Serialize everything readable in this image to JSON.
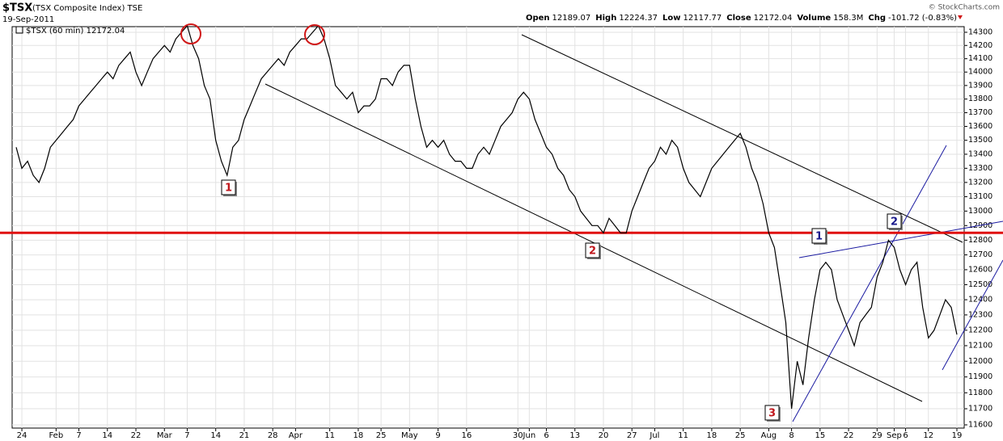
{
  "chart_data": {
    "type": "line",
    "title": "$TSX",
    "subtitle": "(TSX Composite Index) TSE",
    "date": "19-Sep-2011",
    "quote": [
      {
        "label": "Open",
        "value": "12189.07"
      },
      {
        "label": "High",
        "value": "12224.37"
      },
      {
        "label": "Low",
        "value": "12117.77"
      },
      {
        "label": "Close",
        "value": "12172.04"
      },
      {
        "label": "Volume",
        "value": "158.3M"
      },
      {
        "label": "Chg",
        "value": "-101.72 (-0.83%)"
      }
    ],
    "copyright": "© StockCharts.com",
    "legend": "$TSX (60 min) 12172.04",
    "color": "#000000",
    "log_scale": true,
    "grid": true,
    "hline": {
      "value": 12850,
      "color": "#e01010"
    },
    "annotations": [
      {
        "text": "1",
        "color": "#c0161b"
      },
      {
        "text": "2",
        "color": "#c0161b"
      },
      {
        "text": "3",
        "color": "#c0161b"
      },
      {
        "text": "1",
        "color": "#1a1a8c"
      },
      {
        "text": "2",
        "color": "#1a1a8c"
      }
    ],
    "categories": [
      null,
      "24",
      null,
      null,
      null,
      null,
      null,
      "Feb",
      null,
      null,
      null,
      "7",
      null,
      null,
      null,
      null,
      "14",
      null,
      null,
      null,
      null,
      "22",
      null,
      null,
      null,
      null,
      "Mar",
      null,
      null,
      null,
      "7",
      null,
      null,
      null,
      null,
      "14",
      null,
      null,
      null,
      null,
      "21",
      null,
      null,
      null,
      null,
      "28",
      null,
      null,
      null,
      "Apr",
      null,
      null,
      null,
      null,
      null,
      "11",
      null,
      null,
      null,
      null,
      "18",
      null,
      null,
      null,
      "25",
      null,
      null,
      null,
      null,
      "May",
      null,
      null,
      null,
      null,
      "9",
      null,
      null,
      null,
      null,
      "16",
      null,
      null,
      null,
      null,
      null,
      null,
      null,
      null,
      "30",
      null,
      "Jun",
      null,
      null,
      "6",
      null,
      null,
      null,
      null,
      "13",
      null,
      null,
      null,
      null,
      "20",
      null,
      null,
      null,
      null,
      "27",
      null,
      null,
      null,
      "Jul",
      null,
      null,
      null,
      null,
      "11",
      null,
      null,
      null,
      null,
      "18",
      null,
      null,
      null,
      null,
      "25",
      null,
      null,
      null,
      null,
      "Aug",
      null,
      null,
      null,
      "8",
      null,
      null,
      null,
      null,
      "15",
      null,
      null,
      null,
      null,
      "22",
      null,
      null,
      null,
      null,
      "29",
      null,
      null,
      "Sep",
      null,
      "6",
      null,
      null,
      null,
      "12",
      null,
      null,
      null,
      null,
      "19"
    ],
    "values": [
      13450,
      13300,
      13350,
      13250,
      13200,
      13300,
      13450,
      13500,
      13550,
      13600,
      13650,
      13750,
      13800,
      13850,
      13900,
      13950,
      14000,
      13950,
      14050,
      14100,
      14150,
      14000,
      13900,
      14000,
      14100,
      14150,
      14200,
      14150,
      14250,
      14300,
      14350,
      14200,
      14100,
      13900,
      13800,
      13500,
      13350,
      13250,
      13450,
      13500,
      13650,
      13750,
      13850,
      13950,
      14000,
      14050,
      14100,
      14050,
      14150,
      14200,
      14250,
      14250,
      14300,
      14350,
      14250,
      14100,
      13900,
      13850,
      13800,
      13850,
      13700,
      13750,
      13750,
      13800,
      13950,
      13950,
      13900,
      14000,
      14050,
      14050,
      13800,
      13600,
      13450,
      13500,
      13450,
      13500,
      13400,
      13350,
      13350,
      13300,
      13300,
      13400,
      13450,
      13400,
      13500,
      13600,
      13650,
      13700,
      13800,
      13850,
      13800,
      13650,
      13550,
      13450,
      13400,
      13300,
      13250,
      13150,
      13100,
      13000,
      12950,
      12900,
      12900,
      12850,
      12950,
      12900,
      12850,
      12850,
      13000,
      13100,
      13200,
      13300,
      13350,
      13450,
      13400,
      13500,
      13450,
      13300,
      13200,
      13150,
      13100,
      13200,
      13300,
      13350,
      13400,
      13450,
      13500,
      13550,
      13450,
      13300,
      13200,
      13050,
      12850,
      12750,
      12500,
      12250,
      11700,
      12000,
      11850,
      12150,
      12400,
      12600,
      12650,
      12600,
      12400,
      12300,
      12200,
      12100,
      12250,
      12300,
      12350,
      12550,
      12650,
      12800,
      12750,
      12600,
      12500,
      12600,
      12650,
      12350,
      12150,
      12200,
      12300,
      12400,
      12350,
      12172.04
    ],
    "ylim": [
      11580,
      14343
    ],
    "yticks": [
      11600,
      11700,
      11800,
      11900,
      12000,
      12100,
      12200,
      12300,
      12400,
      12500,
      12600,
      12700,
      12800,
      12900,
      13000,
      13100,
      13200,
      13300,
      13400,
      13500,
      13600,
      13700,
      13800,
      13900,
      14000,
      14100,
      14200,
      14300
    ]
  }
}
